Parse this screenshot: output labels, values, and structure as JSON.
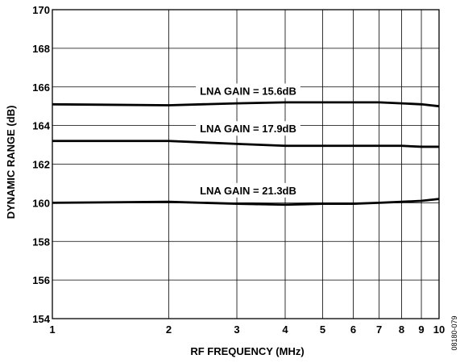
{
  "chart_data": {
    "type": "line",
    "title": "",
    "xlabel": "RF FREQUENCY (MHz)",
    "ylabel": "DYNAMIC RANGE (dB)",
    "x_scale": "log",
    "xlim": [
      1,
      10
    ],
    "ylim": [
      154,
      170
    ],
    "grid": true,
    "x_ticks": [
      1,
      2,
      3,
      4,
      5,
      6,
      7,
      8,
      9,
      10
    ],
    "x_tick_labels": [
      "1",
      "2",
      "3",
      "4",
      "5",
      "6",
      "7",
      "8",
      "9",
      "10"
    ],
    "y_ticks": [
      154,
      156,
      158,
      160,
      162,
      164,
      166,
      168,
      170
    ],
    "y_tick_labels": [
      "154",
      "156",
      "158",
      "160",
      "162",
      "164",
      "166",
      "168",
      "170"
    ],
    "x": [
      1,
      2,
      3,
      4,
      5,
      6,
      7,
      8,
      9,
      10
    ],
    "series": [
      {
        "name": "LNA GAIN = 15.6dB",
        "values": [
          165.1,
          165.05,
          165.15,
          165.2,
          165.2,
          165.2,
          165.2,
          165.15,
          165.1,
          165.0
        ]
      },
      {
        "name": "LNA GAIN = 17.9dB",
        "values": [
          163.2,
          163.2,
          163.05,
          162.95,
          162.95,
          162.95,
          162.95,
          162.95,
          162.9,
          162.9
        ]
      },
      {
        "name": "LNA GAIN = 21.3dB",
        "values": [
          160.0,
          160.05,
          159.95,
          159.9,
          159.95,
          159.95,
          160.0,
          160.05,
          160.1,
          160.2
        ]
      }
    ],
    "figure_id": "08180-079"
  }
}
